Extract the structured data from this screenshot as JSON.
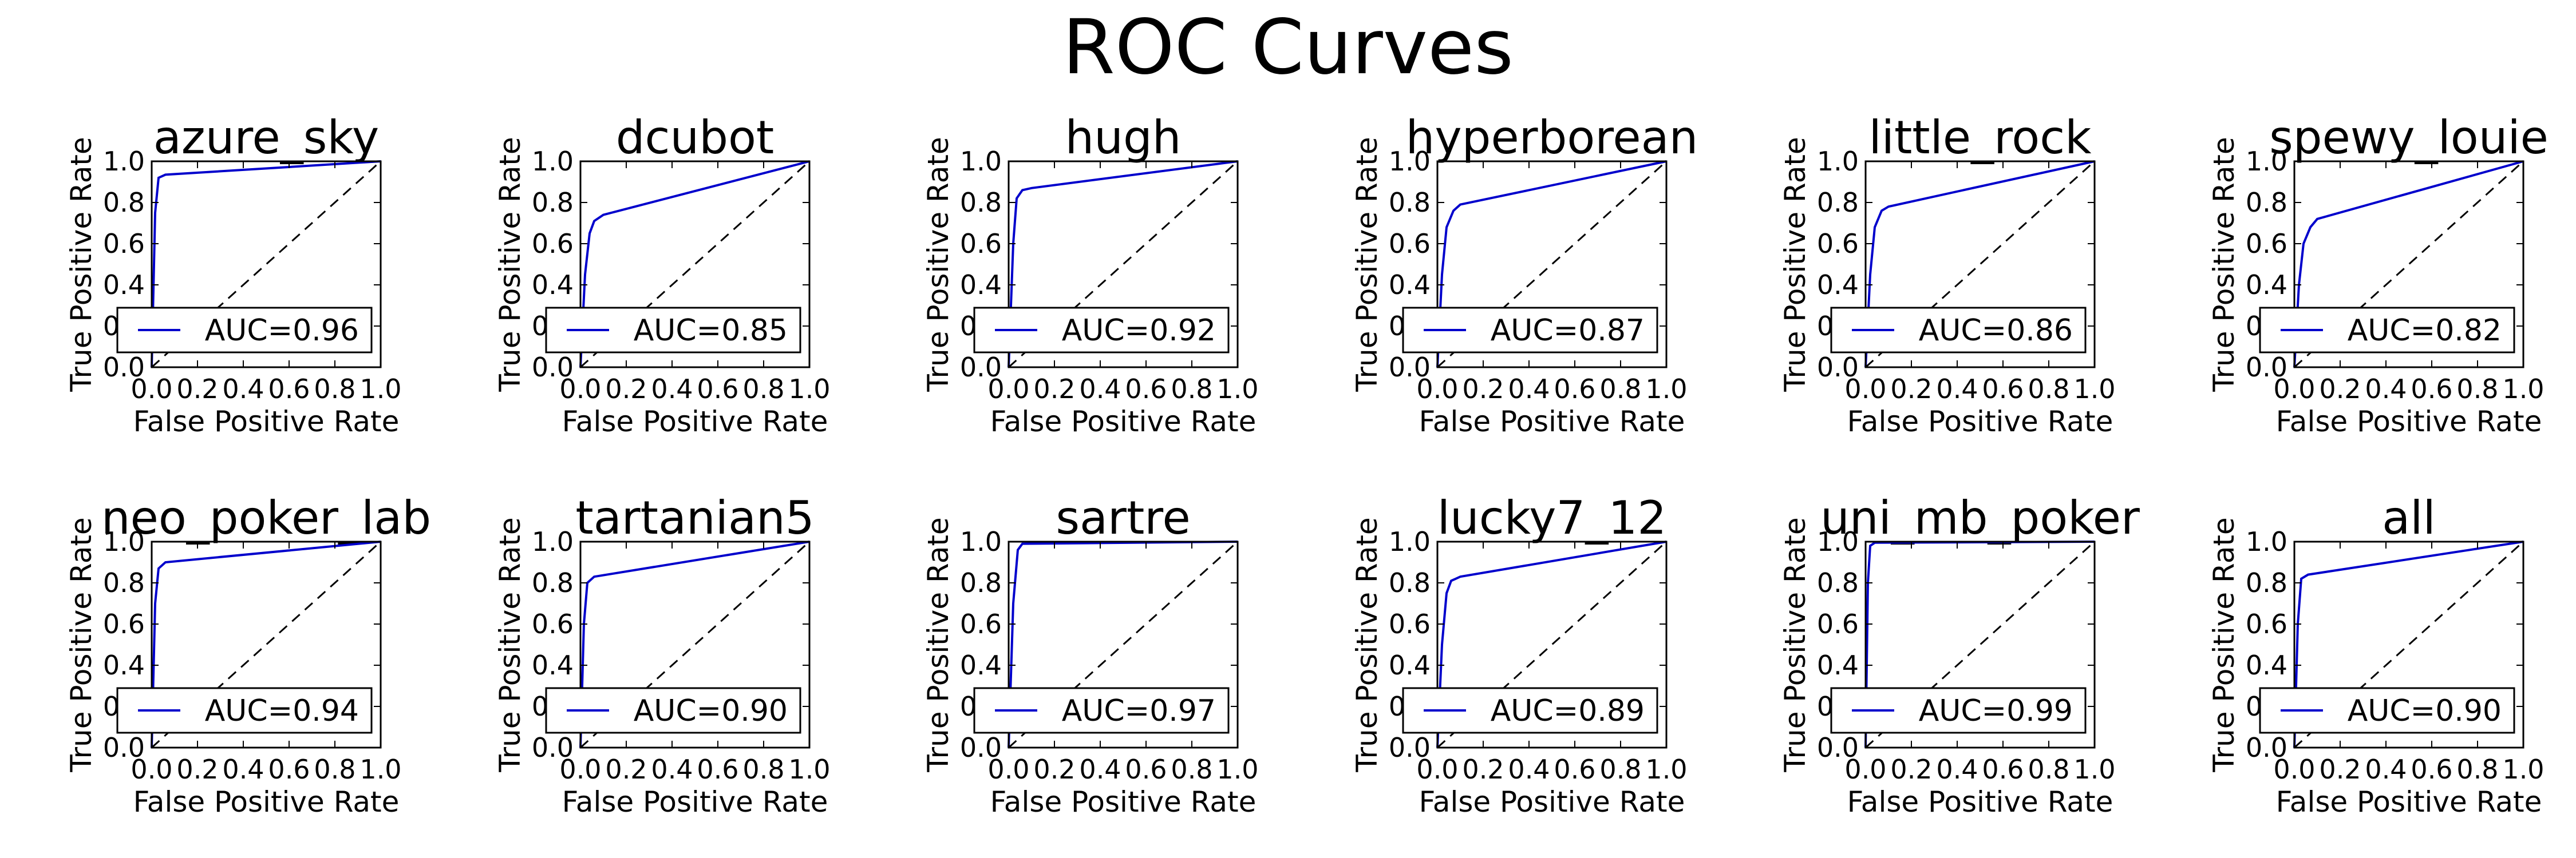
{
  "figure_title": "ROC Curves",
  "colors": {
    "curve": "#0000cc",
    "diagonal": "#000000",
    "axes": "#000000"
  },
  "chart_data": [
    {
      "type": "line",
      "title": "azure_sky",
      "xlabel": "False Positive Rate",
      "ylabel": "True Positive Rate",
      "xlim": [
        0,
        1
      ],
      "ylim": [
        0,
        1
      ],
      "ticks": [
        "0.0",
        "0.2",
        "0.4",
        "0.6",
        "0.8",
        "1.0"
      ],
      "legend_loc": "lower right",
      "series": [
        {
          "name": "AUC=0.96",
          "x": [
            0,
            0.015,
            0.03,
            0.06,
            1.0
          ],
          "y": [
            0,
            0.75,
            0.92,
            0.935,
            1.0
          ]
        },
        {
          "name": "",
          "style": "dashed",
          "x": [
            0,
            1
          ],
          "y": [
            0,
            1
          ]
        }
      ]
    },
    {
      "type": "line",
      "title": "dcubot",
      "xlabel": "False Positive Rate",
      "ylabel": "True Positive Rate",
      "xlim": [
        0,
        1
      ],
      "ylim": [
        0,
        1
      ],
      "ticks": [
        "0.0",
        "0.2",
        "0.4",
        "0.6",
        "0.8",
        "1.0"
      ],
      "legend_loc": "lower right",
      "series": [
        {
          "name": "AUC=0.85",
          "x": [
            0,
            0.02,
            0.04,
            0.06,
            0.1,
            1.0
          ],
          "y": [
            0,
            0.45,
            0.65,
            0.71,
            0.74,
            1.0
          ]
        },
        {
          "name": "",
          "style": "dashed",
          "x": [
            0,
            1
          ],
          "y": [
            0,
            1
          ]
        }
      ]
    },
    {
      "type": "line",
      "title": "hugh",
      "xlabel": "False Positive Rate",
      "ylabel": "True Positive Rate",
      "xlim": [
        0,
        1
      ],
      "ylim": [
        0,
        1
      ],
      "ticks": [
        "0.0",
        "0.2",
        "0.4",
        "0.6",
        "0.8",
        "1.0"
      ],
      "legend_loc": "lower right",
      "series": [
        {
          "name": "AUC=0.92",
          "x": [
            0,
            0.02,
            0.035,
            0.06,
            0.1,
            1.0
          ],
          "y": [
            0,
            0.6,
            0.82,
            0.86,
            0.87,
            1.0
          ]
        },
        {
          "name": "",
          "style": "dashed",
          "x": [
            0,
            1
          ],
          "y": [
            0,
            1
          ]
        }
      ]
    },
    {
      "type": "line",
      "title": "hyperborean",
      "xlabel": "False Positive Rate",
      "ylabel": "True Positive Rate",
      "xlim": [
        0,
        1
      ],
      "ylim": [
        0,
        1
      ],
      "ticks": [
        "0.0",
        "0.2",
        "0.4",
        "0.6",
        "0.8",
        "1.0"
      ],
      "legend_loc": "lower right",
      "series": [
        {
          "name": "AUC=0.87",
          "x": [
            0,
            0.02,
            0.04,
            0.07,
            0.1,
            1.0
          ],
          "y": [
            0,
            0.45,
            0.68,
            0.76,
            0.79,
            1.0
          ]
        },
        {
          "name": "",
          "style": "dashed",
          "x": [
            0,
            1
          ],
          "y": [
            0,
            1
          ]
        }
      ]
    },
    {
      "type": "line",
      "title": "little_rock",
      "xlabel": "False Positive Rate",
      "ylabel": "True Positive Rate",
      "xlim": [
        0,
        1
      ],
      "ylim": [
        0,
        1
      ],
      "ticks": [
        "0.0",
        "0.2",
        "0.4",
        "0.6",
        "0.8",
        "1.0"
      ],
      "legend_loc": "lower right",
      "series": [
        {
          "name": "AUC=0.86",
          "x": [
            0,
            0.02,
            0.04,
            0.07,
            0.1,
            1.0
          ],
          "y": [
            0,
            0.45,
            0.68,
            0.76,
            0.78,
            1.0
          ]
        },
        {
          "name": "",
          "style": "dashed",
          "x": [
            0,
            1
          ],
          "y": [
            0,
            1
          ]
        }
      ]
    },
    {
      "type": "line",
      "title": "spewy_louie",
      "xlabel": "False Positive Rate",
      "ylabel": "True Positive Rate",
      "xlim": [
        0,
        1
      ],
      "ylim": [
        0,
        1
      ],
      "ticks": [
        "0.0",
        "0.2",
        "0.4",
        "0.6",
        "0.8",
        "1.0"
      ],
      "legend_loc": "lower right",
      "series": [
        {
          "name": "AUC=0.82",
          "x": [
            0,
            0.02,
            0.04,
            0.07,
            0.1,
            1.0
          ],
          "y": [
            0,
            0.4,
            0.6,
            0.68,
            0.72,
            1.0
          ]
        },
        {
          "name": "",
          "style": "dashed",
          "x": [
            0,
            1
          ],
          "y": [
            0,
            1
          ]
        }
      ]
    },
    {
      "type": "line",
      "title": "neo_poker_lab",
      "xlabel": "False Positive Rate",
      "ylabel": "True Positive Rate",
      "xlim": [
        0,
        1
      ],
      "ylim": [
        0,
        1
      ],
      "ticks": [
        "0.0",
        "0.2",
        "0.4",
        "0.6",
        "0.8",
        "1.0"
      ],
      "legend_loc": "lower right",
      "series": [
        {
          "name": "AUC=0.94",
          "x": [
            0,
            0.015,
            0.03,
            0.06,
            1.0
          ],
          "y": [
            0,
            0.7,
            0.87,
            0.9,
            1.0
          ]
        },
        {
          "name": "",
          "style": "dashed",
          "x": [
            0,
            1
          ],
          "y": [
            0,
            1
          ]
        }
      ]
    },
    {
      "type": "line",
      "title": "tartanian5",
      "xlabel": "False Positive Rate",
      "ylabel": "True Positive Rate",
      "xlim": [
        0,
        1
      ],
      "ylim": [
        0,
        1
      ],
      "ticks": [
        "0.0",
        "0.2",
        "0.4",
        "0.6",
        "0.8",
        "1.0"
      ],
      "legend_loc": "lower right",
      "series": [
        {
          "name": "AUC=0.90",
          "x": [
            0,
            0.015,
            0.03,
            0.06,
            1.0
          ],
          "y": [
            0,
            0.6,
            0.8,
            0.83,
            1.0
          ]
        },
        {
          "name": "",
          "style": "dashed",
          "x": [
            0,
            1
          ],
          "y": [
            0,
            1
          ]
        }
      ]
    },
    {
      "type": "line",
      "title": "sartre",
      "xlabel": "False Positive Rate",
      "ylabel": "True Positive Rate",
      "xlim": [
        0,
        1
      ],
      "ylim": [
        0,
        1
      ],
      "ticks": [
        "0.0",
        "0.2",
        "0.4",
        "0.6",
        "0.8",
        "1.0"
      ],
      "legend_loc": "lower right",
      "series": [
        {
          "name": "AUC=0.97",
          "x": [
            0,
            0.02,
            0.04,
            0.06,
            1.0
          ],
          "y": [
            0,
            0.7,
            0.96,
            0.99,
            1.0
          ]
        },
        {
          "name": "",
          "style": "dashed",
          "x": [
            0,
            1
          ],
          "y": [
            0,
            1
          ]
        }
      ]
    },
    {
      "type": "line",
      "title": "lucky7_12",
      "xlabel": "False Positive Rate",
      "ylabel": "True Positive Rate",
      "xlim": [
        0,
        1
      ],
      "ylim": [
        0,
        1
      ],
      "ticks": [
        "0.0",
        "0.2",
        "0.4",
        "0.6",
        "0.8",
        "1.0"
      ],
      "legend_loc": "lower right",
      "series": [
        {
          "name": "AUC=0.89",
          "x": [
            0,
            0.02,
            0.04,
            0.06,
            0.1,
            1.0
          ],
          "y": [
            0,
            0.5,
            0.75,
            0.81,
            0.83,
            1.0
          ]
        },
        {
          "name": "",
          "style": "dashed",
          "x": [
            0,
            1
          ],
          "y": [
            0,
            1
          ]
        }
      ]
    },
    {
      "type": "line",
      "title": "uni_mb_poker",
      "xlabel": "False Positive Rate",
      "ylabel": "True Positive Rate",
      "xlim": [
        0,
        1
      ],
      "ylim": [
        0,
        1
      ],
      "ticks": [
        "0.0",
        "0.2",
        "0.4",
        "0.6",
        "0.8",
        "1.0"
      ],
      "legend_loc": "lower right",
      "series": [
        {
          "name": "AUC=0.99",
          "x": [
            0,
            0.01,
            0.02,
            0.04,
            1.0
          ],
          "y": [
            0,
            0.8,
            0.98,
            0.995,
            1.0
          ]
        },
        {
          "name": "",
          "style": "dashed",
          "x": [
            0,
            1
          ],
          "y": [
            0,
            1
          ]
        }
      ]
    },
    {
      "type": "line",
      "title": "all",
      "xlabel": "False Positive Rate",
      "ylabel": "True Positive Rate",
      "xlim": [
        0,
        1
      ],
      "ylim": [
        0,
        1
      ],
      "ticks": [
        "0.0",
        "0.2",
        "0.4",
        "0.6",
        "0.8",
        "1.0"
      ],
      "legend_loc": "lower right",
      "series": [
        {
          "name": "AUC=0.90",
          "x": [
            0,
            0.015,
            0.03,
            0.06,
            1.0
          ],
          "y": [
            0,
            0.6,
            0.82,
            0.84,
            1.0
          ]
        },
        {
          "name": "",
          "style": "dashed",
          "x": [
            0,
            1
          ],
          "y": [
            0,
            1
          ]
        }
      ]
    }
  ]
}
